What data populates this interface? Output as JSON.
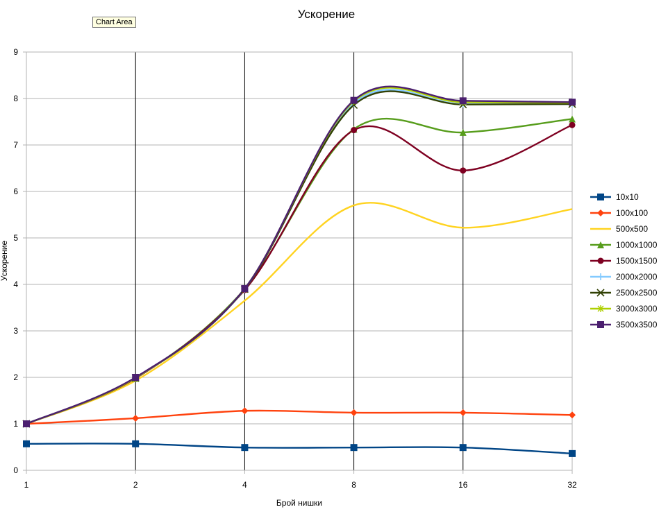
{
  "tooltip": "Chart Area",
  "chart_data": {
    "type": "line",
    "title": "Ускорение",
    "xlabel": "Брой нишки",
    "ylabel": "Ускорение",
    "x_scale": "log2",
    "categories": [
      "1",
      "2",
      "4",
      "8",
      "16",
      "32"
    ],
    "x": [
      1,
      2,
      4,
      8,
      16,
      32
    ],
    "ylim": [
      0,
      9
    ],
    "yticks": [
      0,
      1,
      2,
      3,
      4,
      5,
      6,
      7,
      8,
      9
    ],
    "grid": {
      "horizontal": true,
      "vertical": true
    },
    "legend_position": "right",
    "series": [
      {
        "name": "10x10",
        "color": "#004586",
        "marker": "square",
        "values": [
          0.57,
          0.57,
          0.49,
          0.49,
          0.49,
          0.36
        ]
      },
      {
        "name": "100x100",
        "color": "#ff420e",
        "marker": "diamond",
        "values": [
          1.0,
          1.12,
          1.28,
          1.24,
          1.24,
          1.19
        ]
      },
      {
        "name": "500x500",
        "color": "#ffd320",
        "marker": "none",
        "values": [
          1.0,
          1.93,
          3.65,
          5.7,
          5.22,
          5.62
        ]
      },
      {
        "name": "1000x1000",
        "color": "#579d1c",
        "marker": "triangle",
        "values": [
          1.0,
          1.98,
          3.9,
          7.34,
          7.27,
          7.56
        ]
      },
      {
        "name": "1500x1500",
        "color": "#7e0021",
        "marker": "circle",
        "values": [
          1.0,
          1.98,
          3.88,
          7.32,
          6.45,
          7.43
        ]
      },
      {
        "name": "2000x2000",
        "color": "#83caff",
        "marker": "plus",
        "values": [
          1.0,
          1.99,
          3.9,
          7.9,
          7.88,
          7.88
        ]
      },
      {
        "name": "2500x2500",
        "color": "#314004",
        "marker": "x",
        "values": [
          1.0,
          1.99,
          3.9,
          7.86,
          7.87,
          7.88
        ]
      },
      {
        "name": "3000x3000",
        "color": "#aecf00",
        "marker": "star",
        "values": [
          1.0,
          1.99,
          3.91,
          7.94,
          7.92,
          7.91
        ]
      },
      {
        "name": "3500x3500",
        "color": "#4b1f6f",
        "marker": "square",
        "values": [
          1.0,
          2.0,
          3.91,
          7.96,
          7.95,
          7.92
        ]
      }
    ]
  }
}
